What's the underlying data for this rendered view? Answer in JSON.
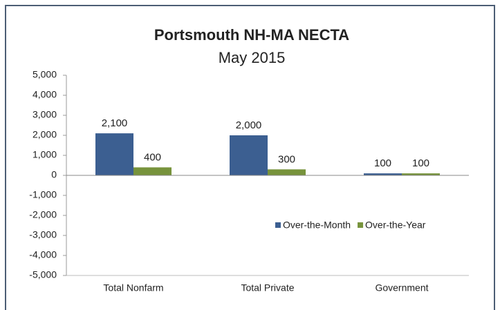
{
  "chart_data": {
    "type": "bar",
    "title": "Portsmouth NH-MA NECTA",
    "subtitle": "May 2015",
    "categories": [
      "Total Nonfarm",
      "Total Private",
      "Government"
    ],
    "series": [
      {
        "name": "Over-the-Month",
        "color": "#3c5f91",
        "values": [
          2100,
          2000,
          100
        ],
        "value_labels": [
          "2,100",
          "2,000",
          "100"
        ]
      },
      {
        "name": "Over-the-Year",
        "color": "#77933c",
        "values": [
          400,
          300,
          100
        ],
        "value_labels": [
          "400",
          "300",
          "100"
        ]
      }
    ],
    "ylim": [
      -5000,
      5000
    ],
    "yticks": [
      {
        "value": 5000,
        "label": "5,000"
      },
      {
        "value": 4000,
        "label": "4,000"
      },
      {
        "value": 3000,
        "label": "3,000"
      },
      {
        "value": 2000,
        "label": "2,000"
      },
      {
        "value": 1000,
        "label": "1,000"
      },
      0,
      {
        "value": -1000,
        "label": "-1,000"
      },
      {
        "value": -2000,
        "label": "-2,000"
      },
      {
        "value": -3000,
        "label": "-3,000"
      },
      {
        "value": -4000,
        "label": "-4,000"
      },
      {
        "value": -5000,
        "label": "-5,000"
      }
    ],
    "legend": "right"
  }
}
